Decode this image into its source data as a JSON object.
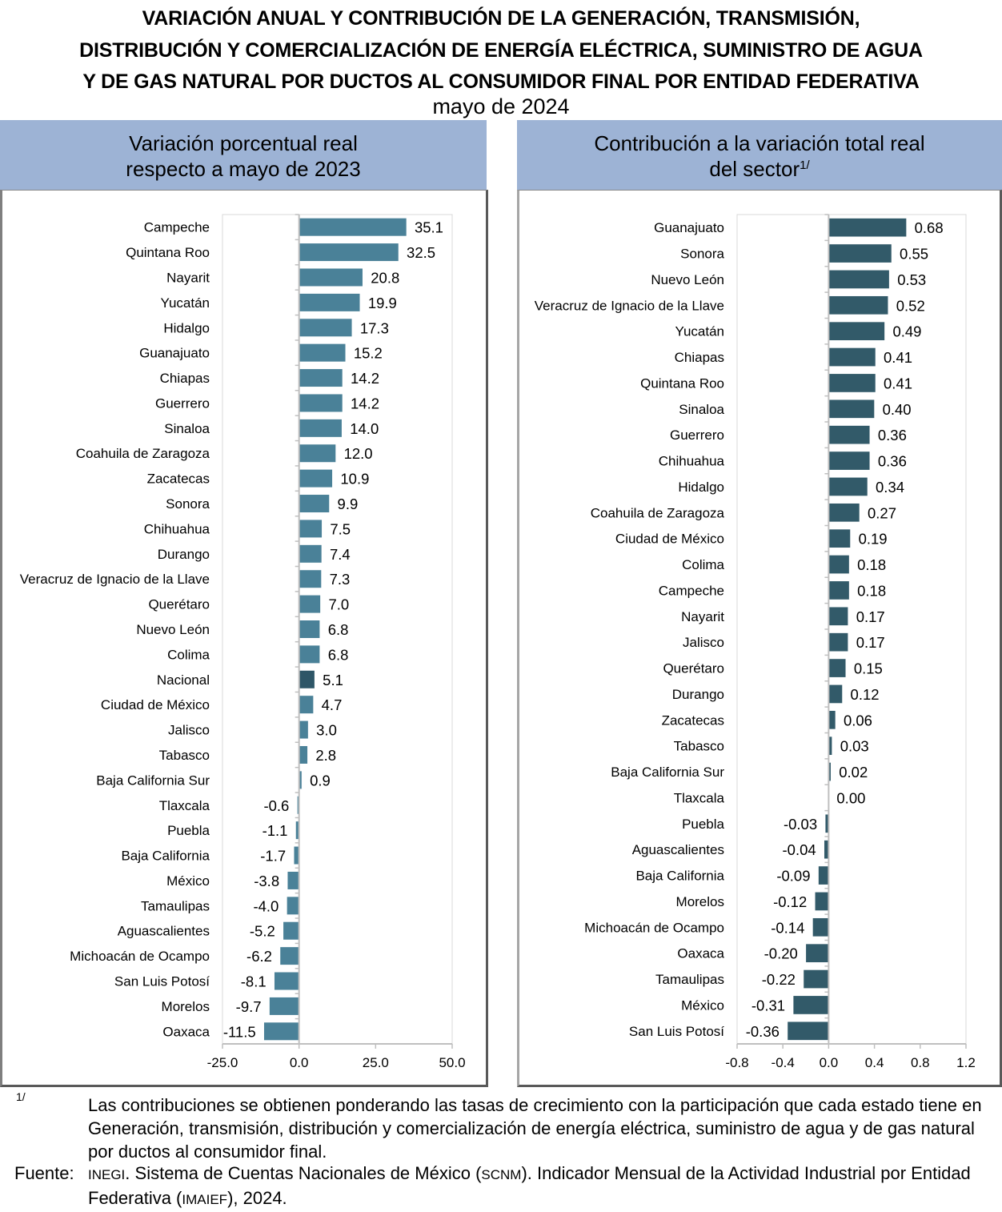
{
  "title_lines": [
    "VARIACIÓN ANUAL Y CONTRIBUCIÓN DE LA GENERACIÓN, TRANSMISIÓN,",
    "DISTRIBUCIÓN Y COMERCIALIZACIÓN DE ENERGÍA ELÉCTRICA, SUMINISTRO DE AGUA",
    "Y DE GAS NATURAL POR DUCTOS AL CONSUMIDOR FINAL POR ENTIDAD FEDERATIVA"
  ],
  "subtitle": "mayo de 2024",
  "left_header": [
    "Variación porcentual real",
    "respecto a mayo de 2023"
  ],
  "right_header": [
    "Contribución a la variación total real",
    "del sector",
    "1/"
  ],
  "colors": {
    "header_bg": "#9db3d5",
    "bar_left": "#4a8198",
    "bar_national": "#2e5667",
    "bar_right": "#325a69",
    "axis": "#bfbfbf"
  },
  "chart_data": [
    {
      "type": "bar",
      "orientation": "horizontal",
      "title": "Variación porcentual real respecto a mayo de 2023",
      "xlabel": "",
      "ylabel": "",
      "xlim": [
        -25,
        50
      ],
      "xticks": [
        -25,
        0,
        25,
        50
      ],
      "xtick_labels": [
        "-25.0",
        "0.0",
        "25.0",
        "50.0"
      ],
      "grid": false,
      "decimals": 1,
      "highlight": "Nacional",
      "categories": [
        "Campeche",
        "Quintana Roo",
        "Nayarit",
        "Yucatán",
        "Hidalgo",
        "Guanajuato",
        "Chiapas",
        "Guerrero",
        "Sinaloa",
        "Coahuila de Zaragoza",
        "Zacatecas",
        "Sonora",
        "Chihuahua",
        "Durango",
        "Veracruz de Ignacio de la Llave",
        "Querétaro",
        "Nuevo León",
        "Colima",
        "Nacional",
        "Ciudad de México",
        "Jalisco",
        "Tabasco",
        "Baja California Sur",
        "Tlaxcala",
        "Puebla",
        "Baja California",
        "México",
        "Tamaulipas",
        "Aguascalientes",
        "Michoacán de Ocampo",
        "San Luis Potosí",
        "Morelos",
        "Oaxaca"
      ],
      "values": [
        35.1,
        32.5,
        20.8,
        19.9,
        17.3,
        15.2,
        14.2,
        14.2,
        14.0,
        12.0,
        10.9,
        9.9,
        7.5,
        7.4,
        7.3,
        7.0,
        6.8,
        6.8,
        5.1,
        4.7,
        3.0,
        2.8,
        0.9,
        -0.6,
        -1.1,
        -1.7,
        -3.8,
        -4.0,
        -5.2,
        -6.2,
        -8.1,
        -9.7,
        -11.5
      ]
    },
    {
      "type": "bar",
      "orientation": "horizontal",
      "title": "Contribución a la variación total real del sector 1/",
      "xlabel": "",
      "ylabel": "",
      "xlim": [
        -0.8,
        1.2
      ],
      "xticks": [
        -0.8,
        -0.4,
        0,
        0.4,
        0.8,
        1.2
      ],
      "xtick_labels": [
        "-0.8",
        "-0.4",
        "0.0",
        "0.4",
        "0.8",
        "1.2"
      ],
      "grid": false,
      "decimals": 2,
      "categories": [
        "Guanajuato",
        "Sonora",
        "Nuevo León",
        "Veracruz de Ignacio de la Llave",
        "Yucatán",
        "Chiapas",
        "Quintana Roo",
        "Sinaloa",
        "Guerrero",
        "Chihuahua",
        "Hidalgo",
        "Coahuila de Zaragoza",
        "Ciudad de México",
        "Colima",
        "Campeche",
        "Nayarit",
        "Jalisco",
        "Querétaro",
        "Durango",
        "Zacatecas",
        "Tabasco",
        "Baja California Sur",
        "Tlaxcala",
        "Puebla",
        "Aguascalientes",
        "Baja California",
        "Morelos",
        "Michoacán de Ocampo",
        "Oaxaca",
        "Tamaulipas",
        "México",
        "San Luis Potosí"
      ],
      "values": [
        0.68,
        0.55,
        0.53,
        0.52,
        0.49,
        0.41,
        0.41,
        0.4,
        0.36,
        0.36,
        0.34,
        0.27,
        0.19,
        0.18,
        0.18,
        0.17,
        0.17,
        0.15,
        0.12,
        0.06,
        0.03,
        0.02,
        0.0,
        -0.03,
        -0.04,
        -0.09,
        -0.12,
        -0.14,
        -0.2,
        -0.22,
        -0.31,
        -0.36
      ]
    }
  ],
  "footnote": {
    "mark": "1/",
    "text": "Las contribuciones se obtienen ponderando las tasas de crecimiento con la participación que cada estado tiene en Generación, transmisión, distribución y comercialización de energía eléctrica, suministro de agua y de gas natural por ductos al consumidor final.",
    "source_label": "Fuente:",
    "source_org": "INEGI",
    "source_text_1": ". Sistema de Cuentas Nacionales de México (",
    "source_abbr_1": "SCNM",
    "source_text_2": "). Indicador Mensual de la Actividad Industrial por Entidad Federativa (",
    "source_abbr_2": "IMAIEF",
    "source_text_3": "), 2024."
  }
}
